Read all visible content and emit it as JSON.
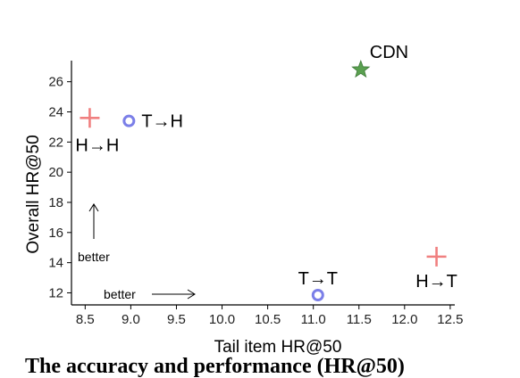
{
  "chart_data": {
    "type": "scatter",
    "xlabel": "Tail item HR@50",
    "ylabel": "Overall HR@50",
    "xlim": [
      8.35,
      12.55
    ],
    "ylim": [
      11.2,
      27.4
    ],
    "xticks": [
      "8.5",
      "9.0",
      "9.5",
      "10.0",
      "10.5",
      "11.0",
      "11.5",
      "12.0",
      "12.5"
    ],
    "yticks": [
      "12",
      "14",
      "16",
      "18",
      "20",
      "22",
      "24",
      "26"
    ],
    "grid": false,
    "points": [
      {
        "label": "H→H",
        "x": 8.55,
        "y": 23.6,
        "marker": "plus",
        "color": "#f08080"
      },
      {
        "label": "T→H",
        "x": 8.98,
        "y": 23.4,
        "marker": "circle",
        "color": "#7b7fe8"
      },
      {
        "label": "CDN",
        "x": 11.52,
        "y": 26.8,
        "marker": "star",
        "color": "#5aa050"
      },
      {
        "label": "T→T",
        "x": 11.05,
        "y": 11.85,
        "marker": "circle",
        "color": "#7b7fe8"
      },
      {
        "label": "H→T",
        "x": 12.35,
        "y": 14.4,
        "marker": "plus",
        "color": "#f08080"
      }
    ],
    "annotations": [
      {
        "text": "better",
        "direction": "up"
      },
      {
        "text": "better",
        "direction": "right"
      }
    ]
  },
  "caption": "The accuracy and performance (HR@50)"
}
